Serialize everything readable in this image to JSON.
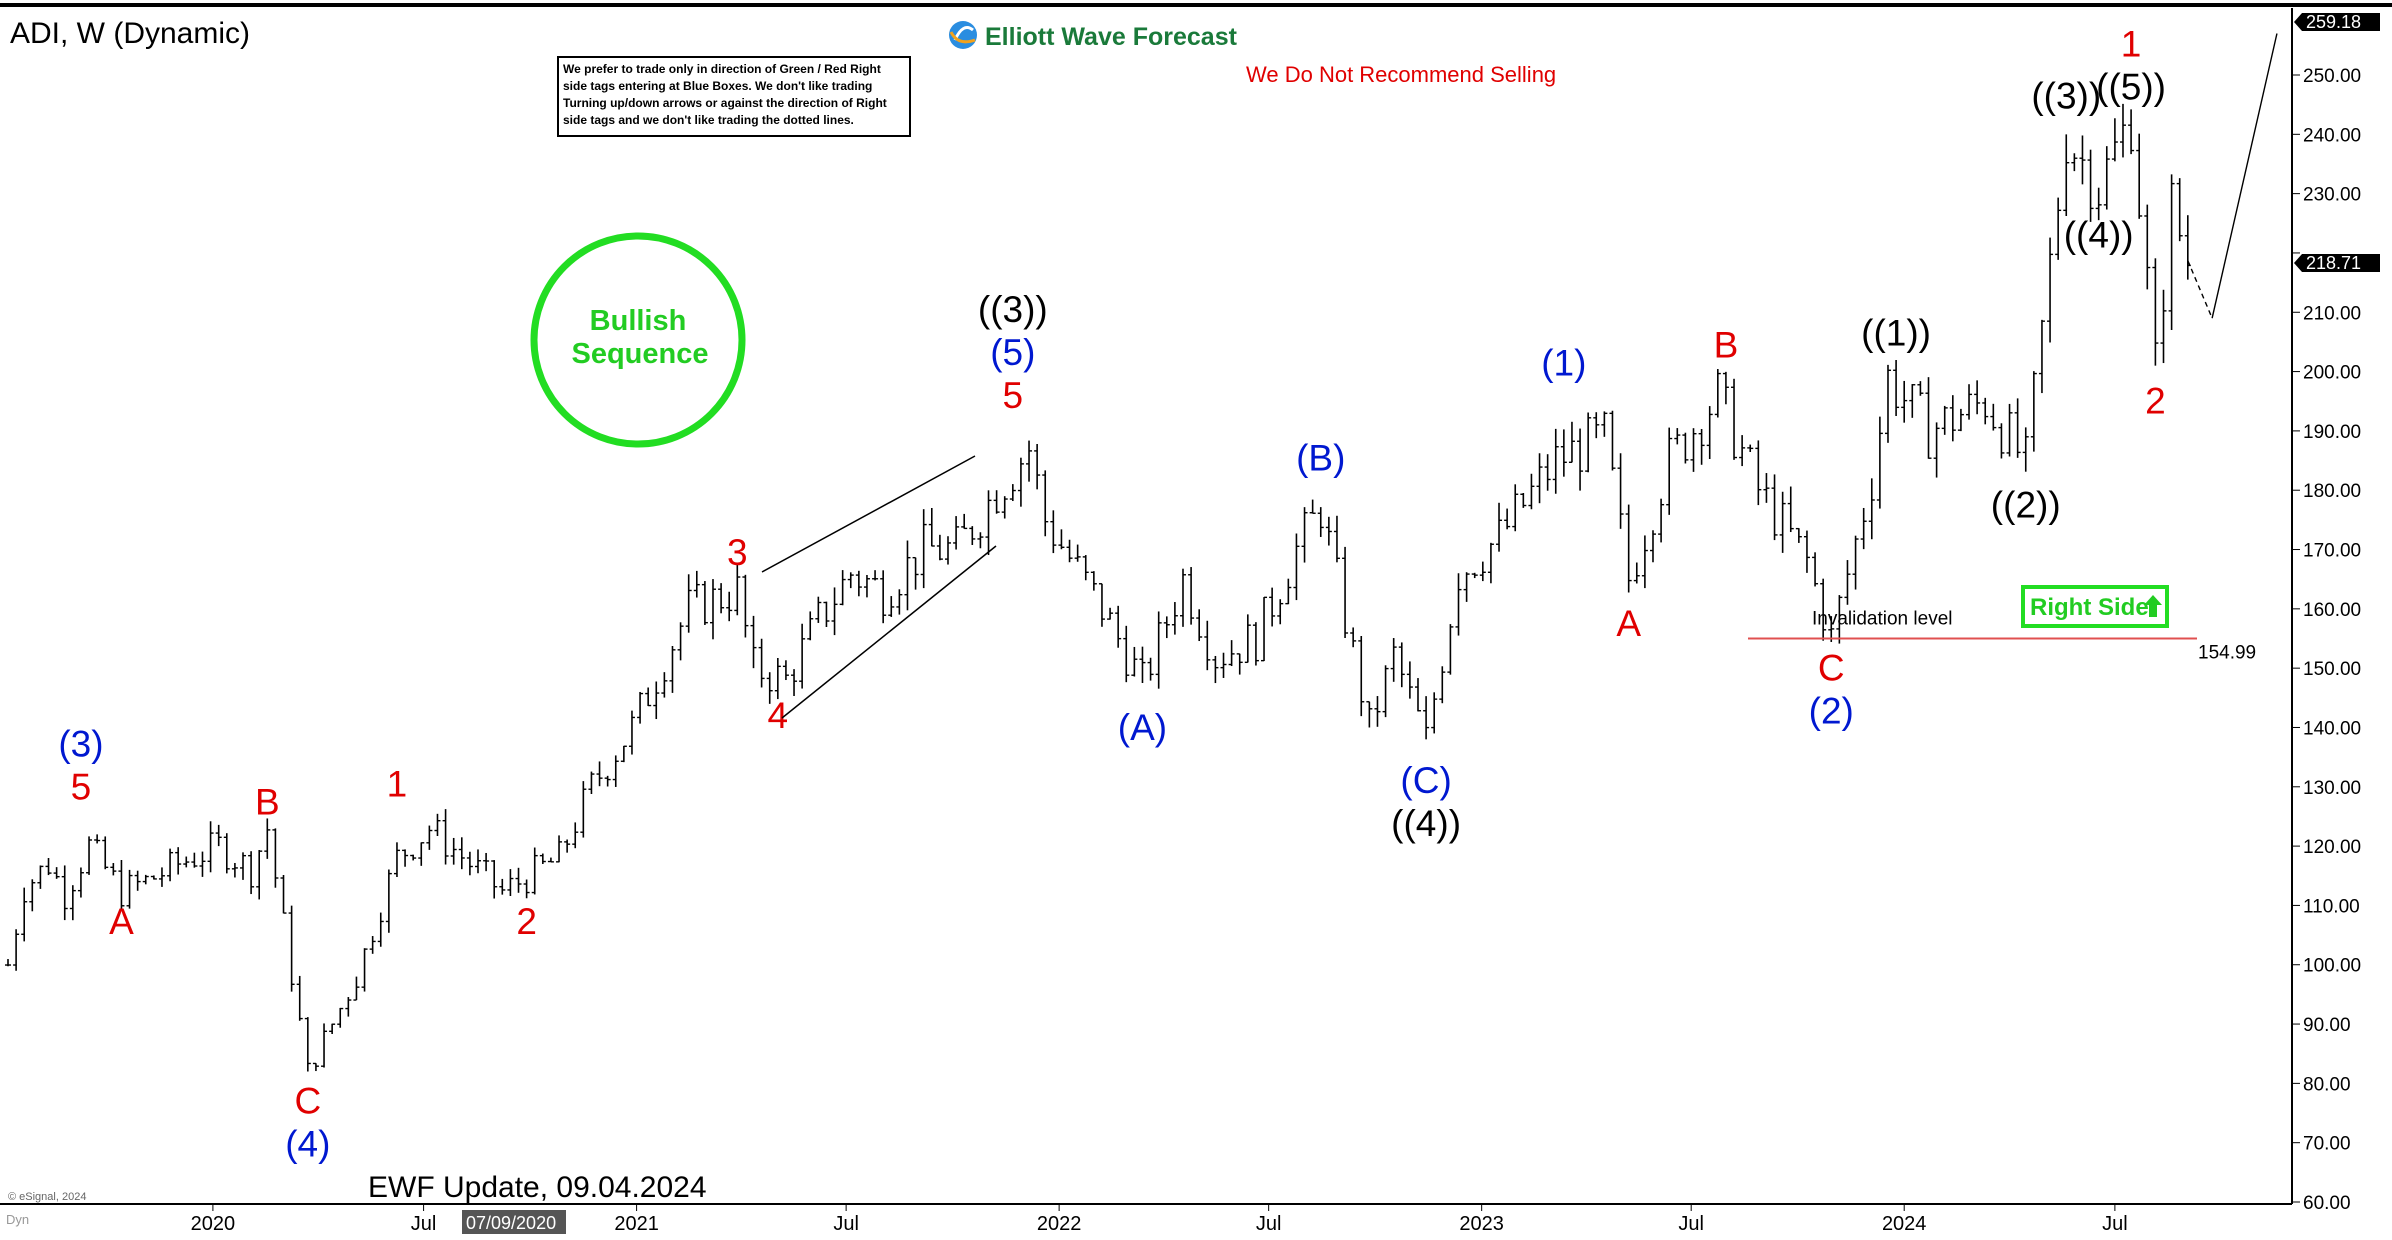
{
  "header": {
    "symbol_title": "ADI, W (Dynamic)",
    "brand": "Elliott Wave Forecast",
    "warning": "We Do Not Recommend Selling",
    "disclaimer_lines": [
      "We prefer to trade only in direction of Green / Red Right",
      "side tags entering at Blue Boxes. We don't like trading",
      "Turning up/down arrows or against the direction of Right",
      "side tags and we don't like trading the dotted lines."
    ]
  },
  "badge": {
    "line1": "Bullish",
    "line2": "Sequence"
  },
  "right_side_tag": "Right Side",
  "invalidation": {
    "label": "Invalidation level",
    "value_label": "154.99",
    "value": 154.99
  },
  "footer": {
    "update": "EWF Update, 09.04.2024",
    "copyright": "© eSignal, 2024",
    "cursor_date": "07/09/2020",
    "corner": "Dyn"
  },
  "price_tags": {
    "top": "259.18",
    "last": "218.71"
  },
  "colors": {
    "red": "#e00000",
    "blue": "#0018d0",
    "green": "#22dd22",
    "black": "#000000",
    "invalidation_line": "#e05050"
  },
  "chart_data": {
    "type": "line",
    "title": "ADI, W (Dynamic)",
    "ylim": [
      60,
      259.18
    ],
    "yticks": [
      "250.00",
      "240.00",
      "230.00",
      "220.00",
      "210.00",
      "200.00",
      "190.00",
      "180.00",
      "170.00",
      "160.00",
      "150.00",
      "140.00",
      "130.00",
      "120.00",
      "110.00",
      "100.00",
      "90.00",
      "80.00",
      "70.00",
      "60.00"
    ],
    "xlabels": [
      "2020",
      "Jul",
      "2021",
      "Jul",
      "2022",
      "Jul",
      "2023",
      "Jul",
      "2024",
      "Jul"
    ],
    "xdomain": [
      "2019-07-08",
      "2024-12-01"
    ],
    "series": [
      {
        "values": [
          [
            "2019-07-08",
            100
          ],
          [
            "2019-07-22",
            113
          ],
          [
            "2019-08-12",
            117
          ],
          [
            "2019-08-26",
            112
          ],
          [
            "2019-09-16",
            120
          ],
          [
            "2019-10-14",
            112.3
          ],
          [
            "2019-11-04",
            114
          ],
          [
            "2019-12-02",
            117
          ],
          [
            "2020-01-06",
            120
          ],
          [
            "2020-02-03",
            116
          ],
          [
            "2020-02-17",
            123
          ],
          [
            "2020-03-23",
            82.0
          ],
          [
            "2020-05-04",
            98
          ],
          [
            "2020-06-08",
            118
          ],
          [
            "2020-07-06",
            123
          ],
          [
            "2020-09-07",
            112.3
          ],
          [
            "2020-10-26",
            118
          ],
          [
            "2020-11-23",
            130
          ],
          [
            "2020-12-28",
            140
          ],
          [
            "2021-02-15",
            160
          ],
          [
            "2021-03-29",
            163
          ],
          [
            "2021-04-12",
            150
          ],
          [
            "2021-05-10",
            148
          ],
          [
            "2021-06-07",
            158
          ],
          [
            "2021-07-05",
            166
          ],
          [
            "2021-08-02",
            163
          ],
          [
            "2021-09-06",
            170
          ],
          [
            "2021-10-04",
            170
          ],
          [
            "2021-11-08",
            180
          ],
          [
            "2021-12-06",
            187
          ],
          [
            "2021-12-20",
            175
          ],
          [
            "2022-02-07",
            160
          ],
          [
            "2022-03-14",
            147.5
          ],
          [
            "2022-04-18",
            165
          ],
          [
            "2022-05-16",
            152
          ],
          [
            "2022-06-20",
            155
          ],
          [
            "2022-07-25",
            170
          ],
          [
            "2022-08-15",
            177
          ],
          [
            "2022-09-26",
            140
          ],
          [
            "2022-10-17",
            152
          ],
          [
            "2022-11-14",
            138.0
          ],
          [
            "2022-12-12",
            166
          ],
          [
            "2023-01-16",
            172
          ],
          [
            "2023-03-06",
            185
          ],
          [
            "2023-04-17",
            189
          ],
          [
            "2023-05-08",
            165
          ],
          [
            "2023-06-12",
            185
          ],
          [
            "2023-07-24",
            196
          ],
          [
            "2023-08-28",
            180
          ],
          [
            "2023-10-09",
            168
          ],
          [
            "2023-10-30",
            155.0
          ],
          [
            "2023-12-04",
            182
          ],
          [
            "2023-12-18",
            199
          ],
          [
            "2024-01-22",
            190
          ],
          [
            "2024-03-11",
            195
          ],
          [
            "2024-04-15",
            184.5
          ],
          [
            "2024-05-20",
            240
          ],
          [
            "2024-06-17",
            231
          ],
          [
            "2024-07-15",
            243
          ],
          [
            "2024-08-05",
            201.0
          ],
          [
            "2024-08-19",
            228
          ],
          [
            "2024-09-02",
            218.71
          ]
        ]
      }
    ],
    "projection": [
      [
        "2024-09-02",
        218.71
      ],
      [
        "2024-09-23",
        209
      ],
      [
        "2024-11-18",
        257
      ]
    ],
    "wave_labels": [
      {
        "t": "(3)",
        "c": "blue",
        "d": "2019-09-09",
        "p": 125.5,
        "pos": "above",
        "off": 2
      },
      {
        "t": "5",
        "c": "red",
        "d": "2019-09-09",
        "p": 125.5,
        "pos": "above",
        "off": 1
      },
      {
        "t": "A",
        "c": "red",
        "d": "2019-10-14",
        "p": 112.3,
        "pos": "below",
        "off": 1
      },
      {
        "t": "B",
        "c": "red",
        "d": "2020-02-17",
        "p": 123.0,
        "pos": "above",
        "off": 1
      },
      {
        "t": "C",
        "c": "red",
        "d": "2020-03-23",
        "p": 82.0,
        "pos": "below",
        "off": 1
      },
      {
        "t": "(4)",
        "c": "blue",
        "d": "2020-03-23",
        "p": 82.0,
        "pos": "below",
        "off": 2
      },
      {
        "t": "1",
        "c": "red",
        "d": "2020-06-08",
        "p": 126.0,
        "pos": "above",
        "off": 1
      },
      {
        "t": "2",
        "c": "red",
        "d": "2020-09-28",
        "p": 112.3,
        "pos": "below",
        "off": 1
      },
      {
        "t": "3",
        "c": "red",
        "d": "2021-03-29",
        "p": 165.0,
        "pos": "above",
        "off": 1
      },
      {
        "t": "4",
        "c": "red",
        "d": "2021-05-03",
        "p": 147.0,
        "pos": "below",
        "off": 1
      },
      {
        "t": "((3))",
        "c": "black",
        "d": "2021-11-22",
        "p": 191.5,
        "pos": "above",
        "off": 3
      },
      {
        "t": "(5)",
        "c": "blue",
        "d": "2021-11-22",
        "p": 191.5,
        "pos": "above",
        "off": 2
      },
      {
        "t": "5",
        "c": "red",
        "d": "2021-11-22",
        "p": 191.5,
        "pos": "above",
        "off": 1
      },
      {
        "t": "(A)",
        "c": "blue",
        "d": "2022-03-14",
        "p": 145.0,
        "pos": "below",
        "off": 1
      },
      {
        "t": "(B)",
        "c": "blue",
        "d": "2022-08-15",
        "p": 181.0,
        "pos": "above",
        "off": 1
      },
      {
        "t": "(C)",
        "c": "blue",
        "d": "2022-11-14",
        "p": 136.0,
        "pos": "below",
        "off": 1
      },
      {
        "t": "((4))",
        "c": "black",
        "d": "2022-11-14",
        "p": 136.0,
        "pos": "below",
        "off": 2
      },
      {
        "t": "(1)",
        "c": "blue",
        "d": "2023-03-13",
        "p": 197.0,
        "pos": "above",
        "off": 1
      },
      {
        "t": "A",
        "c": "red",
        "d": "2023-05-08",
        "p": 162.5,
        "pos": "below",
        "off": 1
      },
      {
        "t": "B",
        "c": "red",
        "d": "2023-07-31",
        "p": 200.0,
        "pos": "above",
        "off": 1
      },
      {
        "t": "C",
        "c": "red",
        "d": "2023-10-30",
        "p": 155.0,
        "pos": "below",
        "off": 1
      },
      {
        "t": "(2)",
        "c": "blue",
        "d": "2023-10-30",
        "p": 155.0,
        "pos": "below",
        "off": 2
      },
      {
        "t": "((1))",
        "c": "black",
        "d": "2023-12-25",
        "p": 202.0,
        "pos": "above",
        "off": 1
      },
      {
        "t": "((2))",
        "c": "black",
        "d": "2024-04-15",
        "p": 182.5,
        "pos": "below",
        "off": 1
      },
      {
        "t": "((3))",
        "c": "black",
        "d": "2024-05-20",
        "p": 242.0,
        "pos": "above",
        "off": 1
      },
      {
        "t": "((4))",
        "c": "black",
        "d": "2024-06-17",
        "p": 228.0,
        "pos": "below",
        "off": 1
      },
      {
        "t": "((5))",
        "c": "black",
        "d": "2024-07-15",
        "p": 243.5,
        "pos": "above",
        "off": 1
      },
      {
        "t": "1",
        "c": "red",
        "d": "2024-07-15",
        "p": 243.5,
        "pos": "above",
        "off": 2
      },
      {
        "t": "2",
        "c": "red",
        "d": "2024-08-05",
        "p": 200.0,
        "pos": "below",
        "off": 1
      }
    ]
  }
}
